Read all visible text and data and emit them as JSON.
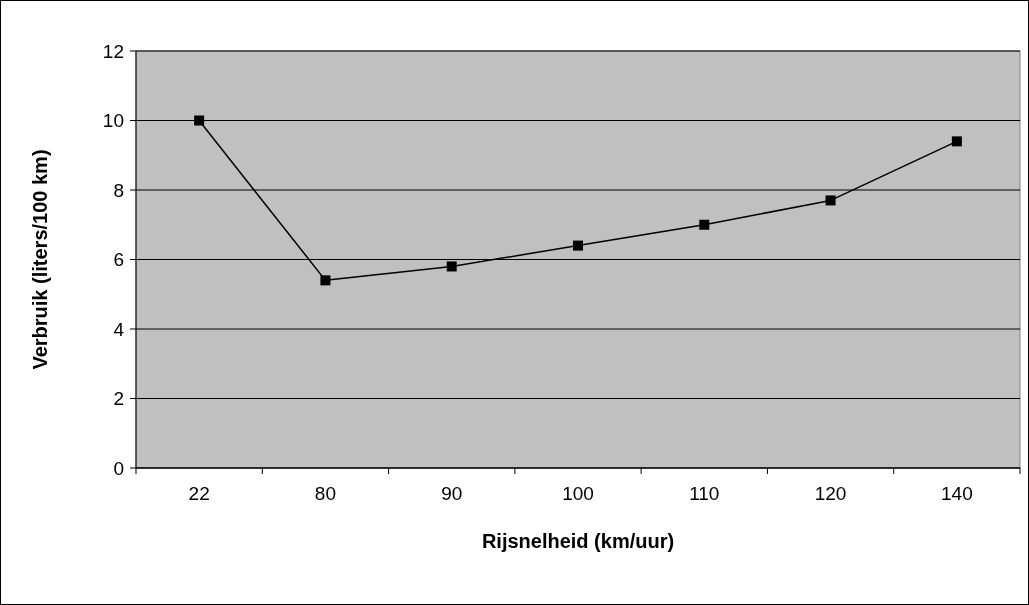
{
  "chart_data": {
    "type": "line",
    "xlabel": "Rijsnelheid (km/uur)",
    "ylabel": "Verbruik (liters/100 km)",
    "categories": [
      "22",
      "80",
      "90",
      "100",
      "110",
      "120",
      "140"
    ],
    "series": [
      {
        "color": "#000000",
        "values": [
          10.0,
          5.4,
          5.8,
          6.4,
          7.0,
          7.7,
          9.4
        ]
      }
    ],
    "ylim": [
      0,
      12
    ],
    "yticks": [
      0,
      2,
      4,
      6,
      8,
      10,
      12
    ],
    "grid": "y",
    "marker": "square",
    "line_style": "solid"
  }
}
